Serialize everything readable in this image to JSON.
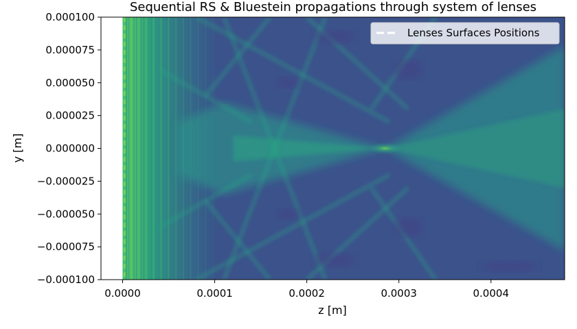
{
  "chart_data": {
    "type": "heatmap",
    "title": "Sequential RS & Bluestein propagations through system of lenses",
    "xlabel": "z [m]",
    "ylabel": "y [m]",
    "xlim": [
      -2.35e-05,
      0.00048
    ],
    "ylim": [
      -0.0001,
      0.0001
    ],
    "data_xlim": [
      0.0,
      0.00048
    ],
    "x_ticks": [
      0.0,
      0.0001,
      0.0002,
      0.0003,
      0.0004
    ],
    "x_tick_labels": [
      "0.0000",
      "0.0001",
      "0.0002",
      "0.0003",
      "0.0004"
    ],
    "y_ticks": [
      -0.0001,
      -7.5e-05,
      -5e-05,
      -2.5e-05,
      0.0,
      2.5e-05,
      5e-05,
      7.5e-05,
      0.0001
    ],
    "y_tick_labels": [
      "−0.000100",
      "−0.000075",
      "−0.000050",
      "−0.000025",
      "0.000000",
      "0.000025",
      "0.000050",
      "0.000075",
      "0.000100"
    ],
    "colormap": "viridis",
    "background_color": "#3b528b",
    "focus": {
      "z": 0.000285,
      "y": 0.0
    },
    "lens_surfaces": {
      "z": [
        2e-06
      ],
      "color": "#7ad151",
      "style": "dashed"
    },
    "legend": {
      "position": "top-right",
      "entries": [
        {
          "label": "Lenses Surfaces Positions",
          "color": "#ffffff",
          "style": "dashed"
        }
      ]
    },
    "grid": false
  }
}
